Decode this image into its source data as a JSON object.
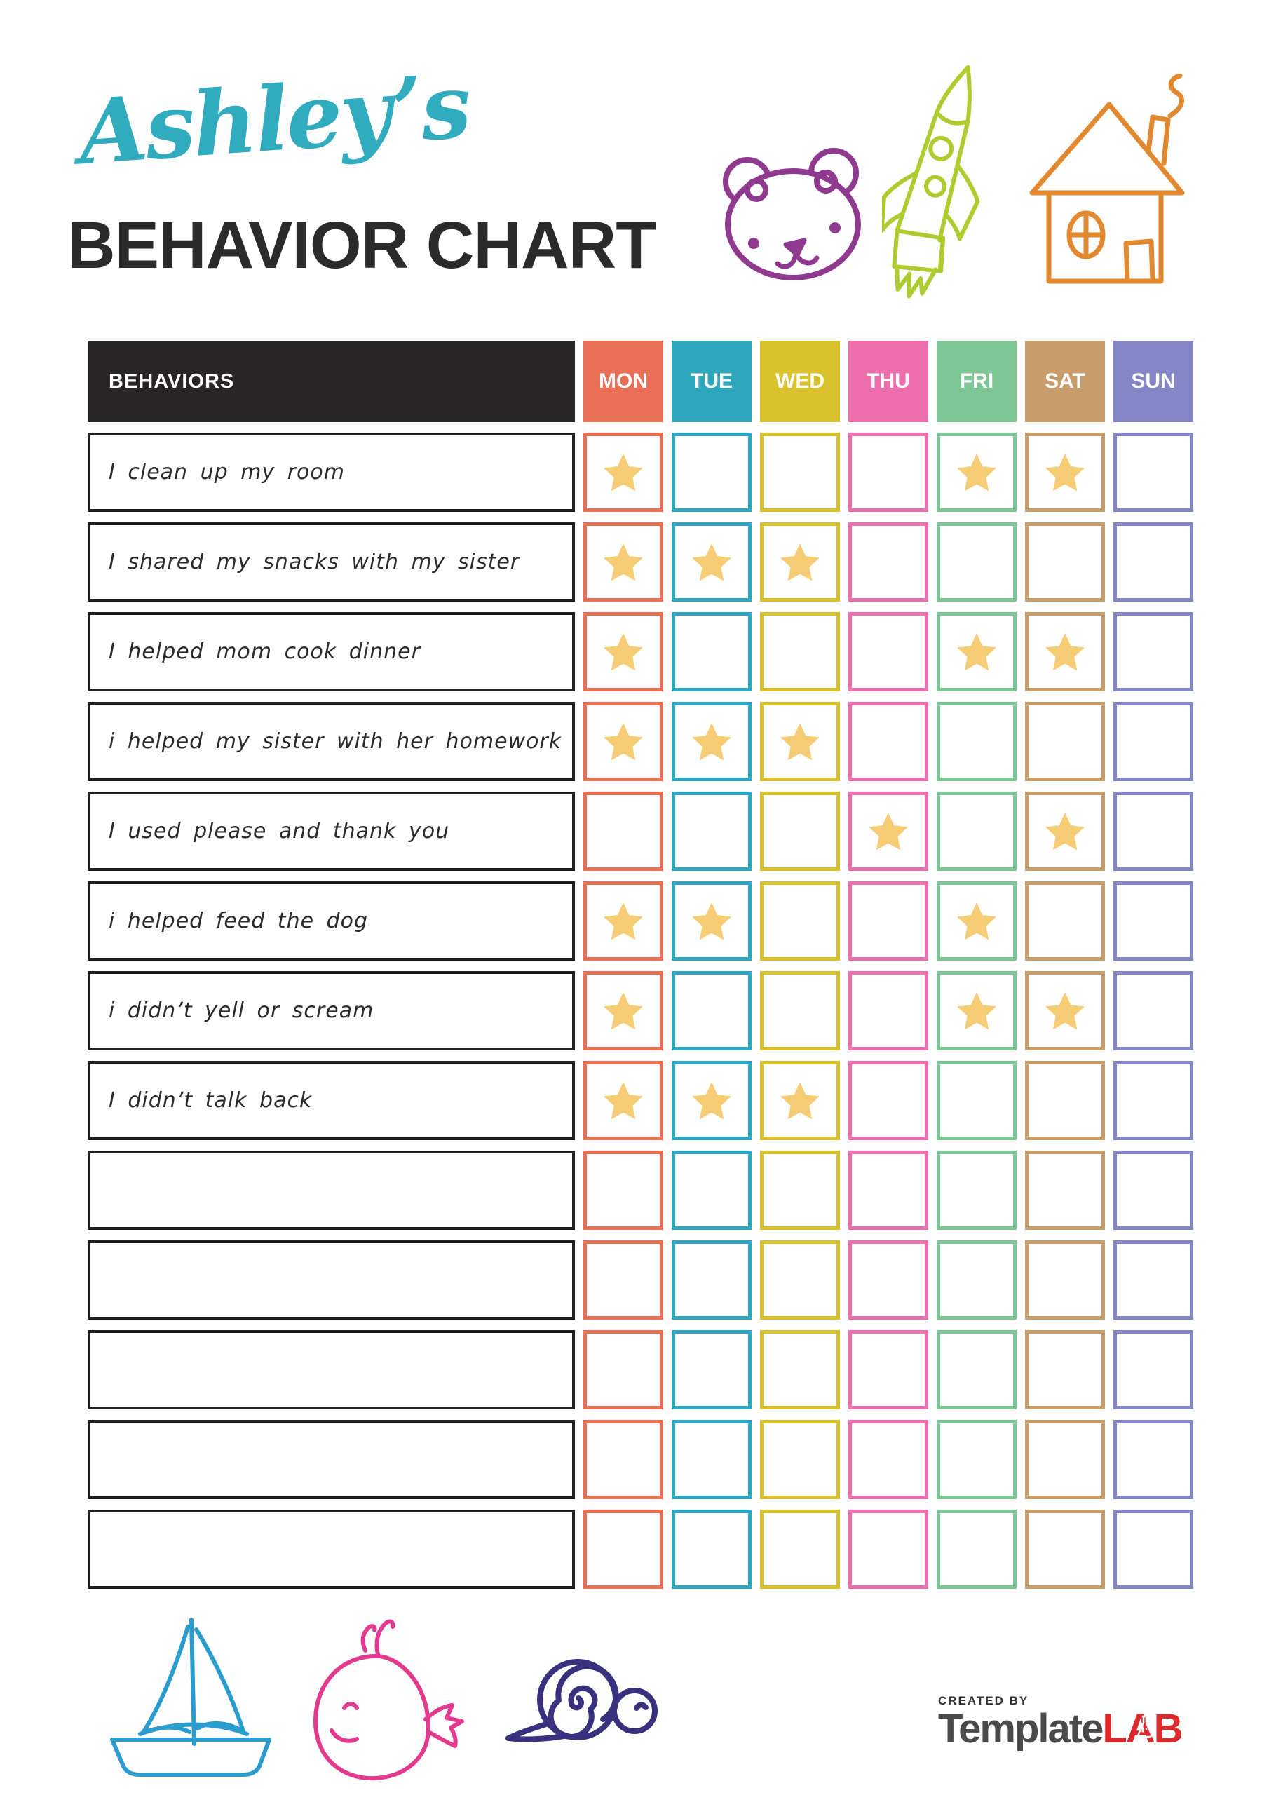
{
  "header": {
    "name": "Ashley’s",
    "title": "BEHAVIOR CHART"
  },
  "colors": {
    "title_accent": "#31ABBE",
    "title_text": "#2B2B2B",
    "header_bg": "#272525",
    "header_text": "#FFFFFF",
    "row_border": "#1F1F1F",
    "label_text": "#2B2B2B",
    "star": "#F6CC74",
    "brand_gray": "#4A4A4A",
    "brand_red": "#DC2A2C",
    "created_by": "#333333"
  },
  "doodles": {
    "colors": {
      "bear": "#8F3A8F",
      "rocket": "#AECB2F",
      "house": "#E2882F",
      "boat": "#2B9CCE",
      "whale": "#E13A8F",
      "snail": "#39307E"
    }
  },
  "table": {
    "behaviors_header": "BEHAVIORS",
    "days": [
      {
        "label": "MON",
        "color": "#E97057"
      },
      {
        "label": "TUE",
        "color": "#2EA6BB"
      },
      {
        "label": "WED",
        "color": "#D9C22E"
      },
      {
        "label": "THU",
        "color": "#ED6EAC"
      },
      {
        "label": "FRI",
        "color": "#7FC697"
      },
      {
        "label": "SAT",
        "color": "#C89D6B"
      },
      {
        "label": "SUN",
        "color": "#8486C5"
      }
    ],
    "rows": [
      {
        "label": "I clean up my room",
        "stars": [
          1,
          0,
          0,
          0,
          1,
          1,
          0
        ]
      },
      {
        "label": "I shared my snacks with my sister",
        "stars": [
          1,
          1,
          1,
          0,
          0,
          0,
          0
        ]
      },
      {
        "label": "I helped mom cook dinner",
        "stars": [
          1,
          0,
          0,
          0,
          1,
          1,
          0
        ]
      },
      {
        "label": "i helped my sister with her homework",
        "stars": [
          1,
          1,
          1,
          0,
          0,
          0,
          0
        ]
      },
      {
        "label": "I used please and thank you",
        "stars": [
          0,
          0,
          0,
          1,
          0,
          1,
          0
        ]
      },
      {
        "label": "i helped feed the dog",
        "stars": [
          1,
          1,
          0,
          0,
          1,
          0,
          0
        ]
      },
      {
        "label": "i didn’t yell or scream",
        "stars": [
          1,
          0,
          0,
          0,
          1,
          1,
          0
        ]
      },
      {
        "label": "I didn’t talk back",
        "stars": [
          1,
          1,
          1,
          0,
          0,
          0,
          0
        ]
      },
      {
        "label": "",
        "stars": [
          0,
          0,
          0,
          0,
          0,
          0,
          0
        ]
      },
      {
        "label": "",
        "stars": [
          0,
          0,
          0,
          0,
          0,
          0,
          0
        ]
      },
      {
        "label": "",
        "stars": [
          0,
          0,
          0,
          0,
          0,
          0,
          0
        ]
      },
      {
        "label": "",
        "stars": [
          0,
          0,
          0,
          0,
          0,
          0,
          0
        ]
      },
      {
        "label": "",
        "stars": [
          0,
          0,
          0,
          0,
          0,
          0,
          0
        ]
      }
    ]
  },
  "footer": {
    "created_by": "CREATED BY",
    "brand_first": "Template",
    "brand_second": "LAB"
  }
}
